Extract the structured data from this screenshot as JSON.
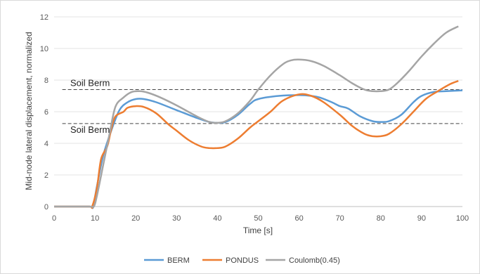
{
  "chart_data": {
    "type": "line",
    "title": "",
    "xlabel": "Time [s]",
    "ylabel": "Mid-node lateral displacement, normalized",
    "xlim": [
      0,
      100
    ],
    "ylim": [
      0,
      12
    ],
    "xticks": [
      "0",
      "10",
      "20",
      "30",
      "40",
      "50",
      "60",
      "70",
      "80",
      "90",
      "100"
    ],
    "yticks": [
      "0",
      "2",
      "4",
      "6",
      "8",
      "10",
      "12"
    ],
    "grid": true,
    "legend_position": "bottom",
    "annotations": [
      {
        "text": "Soil Berm",
        "y": 7.4
      },
      {
        "text": "Soil Berm",
        "y": 5.25
      }
    ],
    "reference_lines": [
      7.4,
      5.25
    ],
    "series": [
      {
        "name": "BERM",
        "color": "#5b9bd5",
        "points": [
          [
            0,
            0
          ],
          [
            8.5,
            0
          ],
          [
            9.5,
            0
          ],
          [
            10.5,
            1.3
          ],
          [
            12,
            3.2
          ],
          [
            14,
            4.8
          ],
          [
            16,
            6.1
          ],
          [
            18,
            6.6
          ],
          [
            20,
            6.8
          ],
          [
            22,
            6.8
          ],
          [
            25,
            6.6
          ],
          [
            30,
            6.1
          ],
          [
            35,
            5.6
          ],
          [
            38,
            5.35
          ],
          [
            40,
            5.3
          ],
          [
            42,
            5.35
          ],
          [
            45,
            5.8
          ],
          [
            48,
            6.5
          ],
          [
            50,
            6.8
          ],
          [
            55,
            7.0
          ],
          [
            60,
            7.05
          ],
          [
            63,
            7.0
          ],
          [
            65,
            6.9
          ],
          [
            68,
            6.6
          ],
          [
            70,
            6.35
          ],
          [
            72,
            6.2
          ],
          [
            75,
            5.7
          ],
          [
            78,
            5.4
          ],
          [
            80,
            5.35
          ],
          [
            82,
            5.4
          ],
          [
            85,
            5.8
          ],
          [
            88,
            6.6
          ],
          [
            90,
            7.0
          ],
          [
            93,
            7.25
          ],
          [
            96,
            7.3
          ],
          [
            100,
            7.35
          ]
        ]
      },
      {
        "name": "PONDUS",
        "color": "#ed7d31",
        "points": [
          [
            0,
            0
          ],
          [
            8.5,
            0
          ],
          [
            9.3,
            0
          ],
          [
            10.5,
            1.2
          ],
          [
            11.5,
            3.0
          ],
          [
            13,
            3.8
          ],
          [
            14,
            4.9
          ],
          [
            15,
            5.7
          ],
          [
            17,
            6.0
          ],
          [
            18,
            6.25
          ],
          [
            20,
            6.35
          ],
          [
            22,
            6.3
          ],
          [
            25,
            5.9
          ],
          [
            28,
            5.2
          ],
          [
            30,
            4.8
          ],
          [
            33,
            4.2
          ],
          [
            36,
            3.8
          ],
          [
            38,
            3.7
          ],
          [
            40,
            3.7
          ],
          [
            42,
            3.8
          ],
          [
            45,
            4.3
          ],
          [
            48,
            5.0
          ],
          [
            50,
            5.4
          ],
          [
            53,
            6.0
          ],
          [
            56,
            6.7
          ],
          [
            60,
            7.1
          ],
          [
            63,
            7.0
          ],
          [
            66,
            6.6
          ],
          [
            70,
            5.8
          ],
          [
            73,
            5.1
          ],
          [
            76,
            4.6
          ],
          [
            78,
            4.45
          ],
          [
            80,
            4.45
          ],
          [
            82,
            4.6
          ],
          [
            85,
            5.2
          ],
          [
            88,
            6.0
          ],
          [
            91,
            6.8
          ],
          [
            94,
            7.3
          ],
          [
            97,
            7.75
          ],
          [
            99,
            7.95
          ]
        ]
      },
      {
        "name": "Coulomb(0.45)",
        "color": "#a5a5a5",
        "points": [
          [
            0,
            0
          ],
          [
            8.5,
            0
          ],
          [
            9.7,
            0
          ],
          [
            10.5,
            0.7
          ],
          [
            12,
            2.6
          ],
          [
            13.5,
            4.5
          ],
          [
            15,
            6.3
          ],
          [
            17,
            6.9
          ],
          [
            19,
            7.25
          ],
          [
            21,
            7.3
          ],
          [
            23,
            7.2
          ],
          [
            26,
            6.9
          ],
          [
            30,
            6.4
          ],
          [
            35,
            5.7
          ],
          [
            38,
            5.35
          ],
          [
            40,
            5.3
          ],
          [
            42,
            5.4
          ],
          [
            45,
            5.9
          ],
          [
            48,
            6.7
          ],
          [
            50,
            7.4
          ],
          [
            53,
            8.3
          ],
          [
            56,
            9.0
          ],
          [
            58,
            9.25
          ],
          [
            60,
            9.3
          ],
          [
            63,
            9.2
          ],
          [
            66,
            8.9
          ],
          [
            70,
            8.3
          ],
          [
            73,
            7.8
          ],
          [
            76,
            7.4
          ],
          [
            78,
            7.3
          ],
          [
            80,
            7.3
          ],
          [
            82,
            7.4
          ],
          [
            84,
            7.8
          ],
          [
            87,
            8.6
          ],
          [
            90,
            9.5
          ],
          [
            93,
            10.3
          ],
          [
            96,
            11.0
          ],
          [
            99,
            11.4
          ]
        ]
      }
    ]
  }
}
